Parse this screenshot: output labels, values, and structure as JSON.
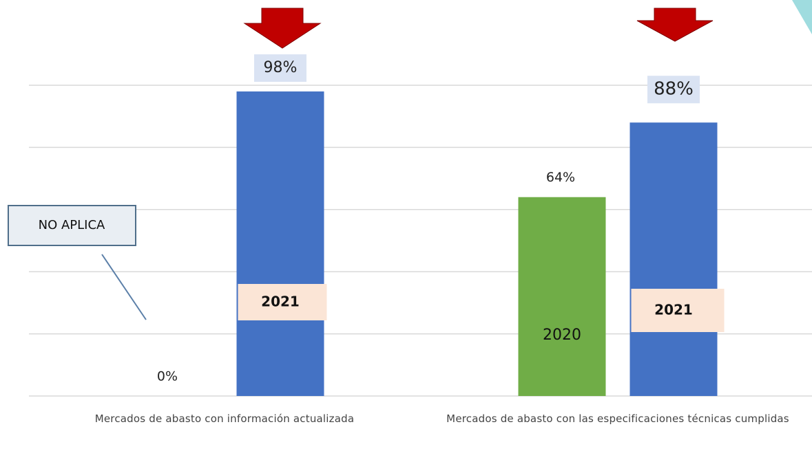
{
  "chart_data": {
    "type": "bar",
    "categories": [
      "Mercados de abasto con información actualizada",
      "Mercados de abasto con las especificaciones técnicas cumplidas"
    ],
    "series": [
      {
        "name": "2020",
        "color": "#70ad47",
        "values": [
          0,
          64
        ],
        "value_labels": [
          "0%",
          "64%"
        ]
      },
      {
        "name": "2021",
        "color": "#4472c4",
        "values": [
          98,
          88
        ],
        "value_labels": [
          "98%",
          "88%"
        ]
      }
    ],
    "ylim": [
      0,
      100
    ],
    "yticks": [
      0,
      20,
      40,
      60,
      80,
      100
    ],
    "grid": true,
    "annotations": [
      "NO APLICA"
    ]
  }
}
